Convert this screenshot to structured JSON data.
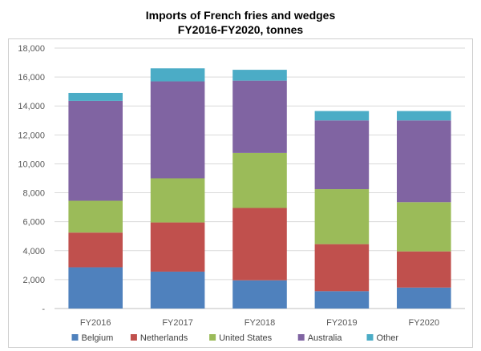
{
  "chart_data": {
    "type": "bar",
    "stacked": true,
    "title": "Imports of French fries and wedges",
    "subtitle": "FY2016-FY2020, tonnes",
    "categories": [
      "FY2016",
      "FY2017",
      "FY2018",
      "FY2019",
      "FY2020"
    ],
    "ylim": [
      0,
      18000
    ],
    "yticks": [
      0,
      2000,
      4000,
      6000,
      8000,
      10000,
      12000,
      14000,
      16000,
      18000
    ],
    "ytick_labels": [
      "-",
      "2,000",
      "4,000",
      "6,000",
      "8,000",
      "10,000",
      "12,000",
      "14,000",
      "16,000",
      "18,000"
    ],
    "grid": true,
    "legend": "bottom",
    "series": [
      {
        "name": "Belgium",
        "color": "#4f81bd",
        "values": [
          2850,
          2550,
          1950,
          1200,
          1450
        ]
      },
      {
        "name": "Netherlands",
        "color": "#c0504d",
        "values": [
          2400,
          3400,
          5000,
          3250,
          2500
        ]
      },
      {
        "name": "United States",
        "color": "#9bbb59",
        "values": [
          2200,
          3050,
          3800,
          3800,
          3400
        ]
      },
      {
        "name": "Australia",
        "color": "#8064a2",
        "values": [
          6900,
          6700,
          5000,
          4750,
          5650
        ]
      },
      {
        "name": "Other",
        "color": "#4bacc6",
        "values": [
          550,
          900,
          750,
          650,
          650
        ]
      }
    ]
  }
}
